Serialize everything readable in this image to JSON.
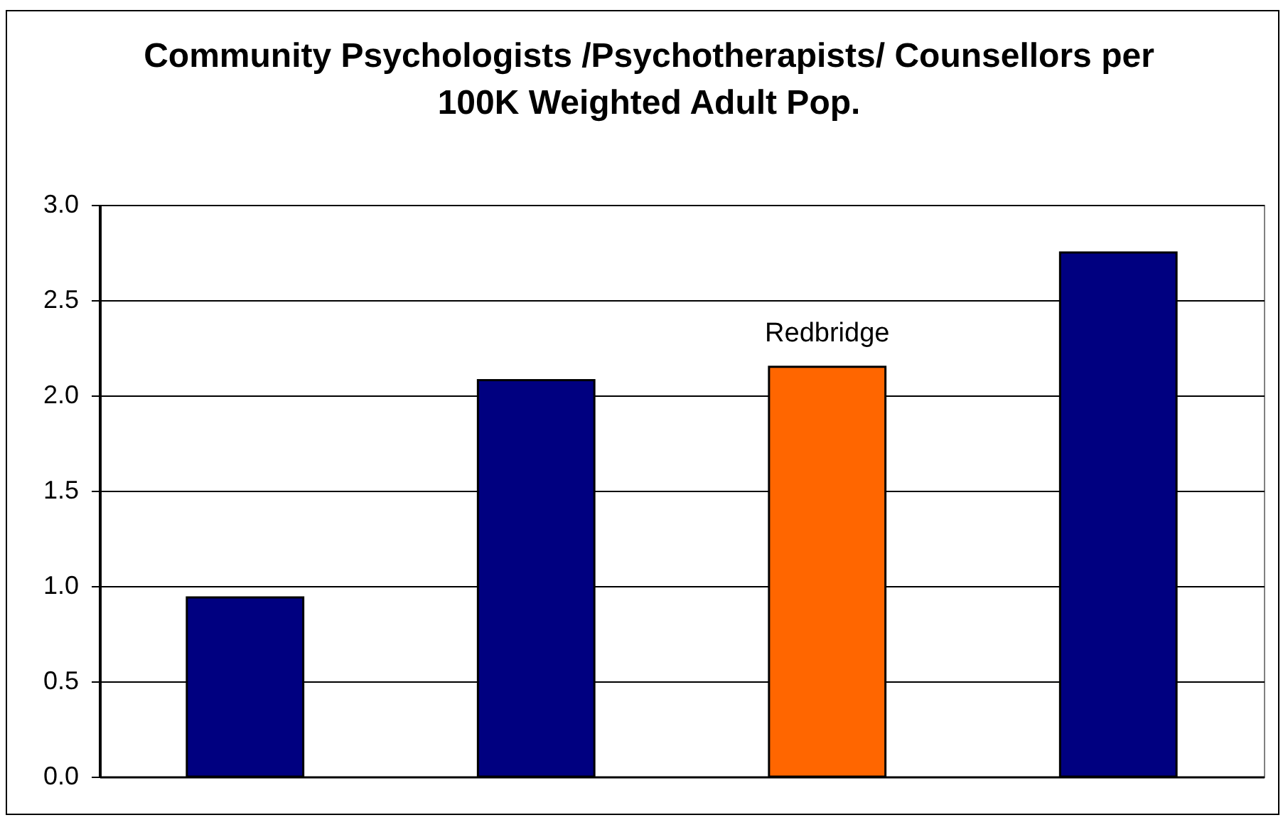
{
  "chart_data": {
    "type": "bar",
    "title": "Community Psychologists /Psychotherapists/ Counsellors per 100K Weighted Adult Pop.",
    "categories": [
      null,
      null,
      "Redbridge",
      null
    ],
    "values": [
      0.94,
      2.08,
      2.15,
      2.75
    ],
    "colors": [
      "#000080",
      "#000080",
      "#ff6600",
      "#000080"
    ],
    "ylim": [
      0,
      3
    ],
    "yticks": [
      {
        "value": 0,
        "label": "0.0"
      },
      {
        "value": 0.5,
        "label": "0.5"
      },
      {
        "value": 1,
        "label": "1.0"
      },
      {
        "value": 1.5,
        "label": "1.5"
      },
      {
        "value": 2,
        "label": "2.0"
      },
      {
        "value": 2.5,
        "label": "2.5"
      },
      {
        "value": 3,
        "label": "3.0"
      }
    ],
    "grid": "y"
  }
}
